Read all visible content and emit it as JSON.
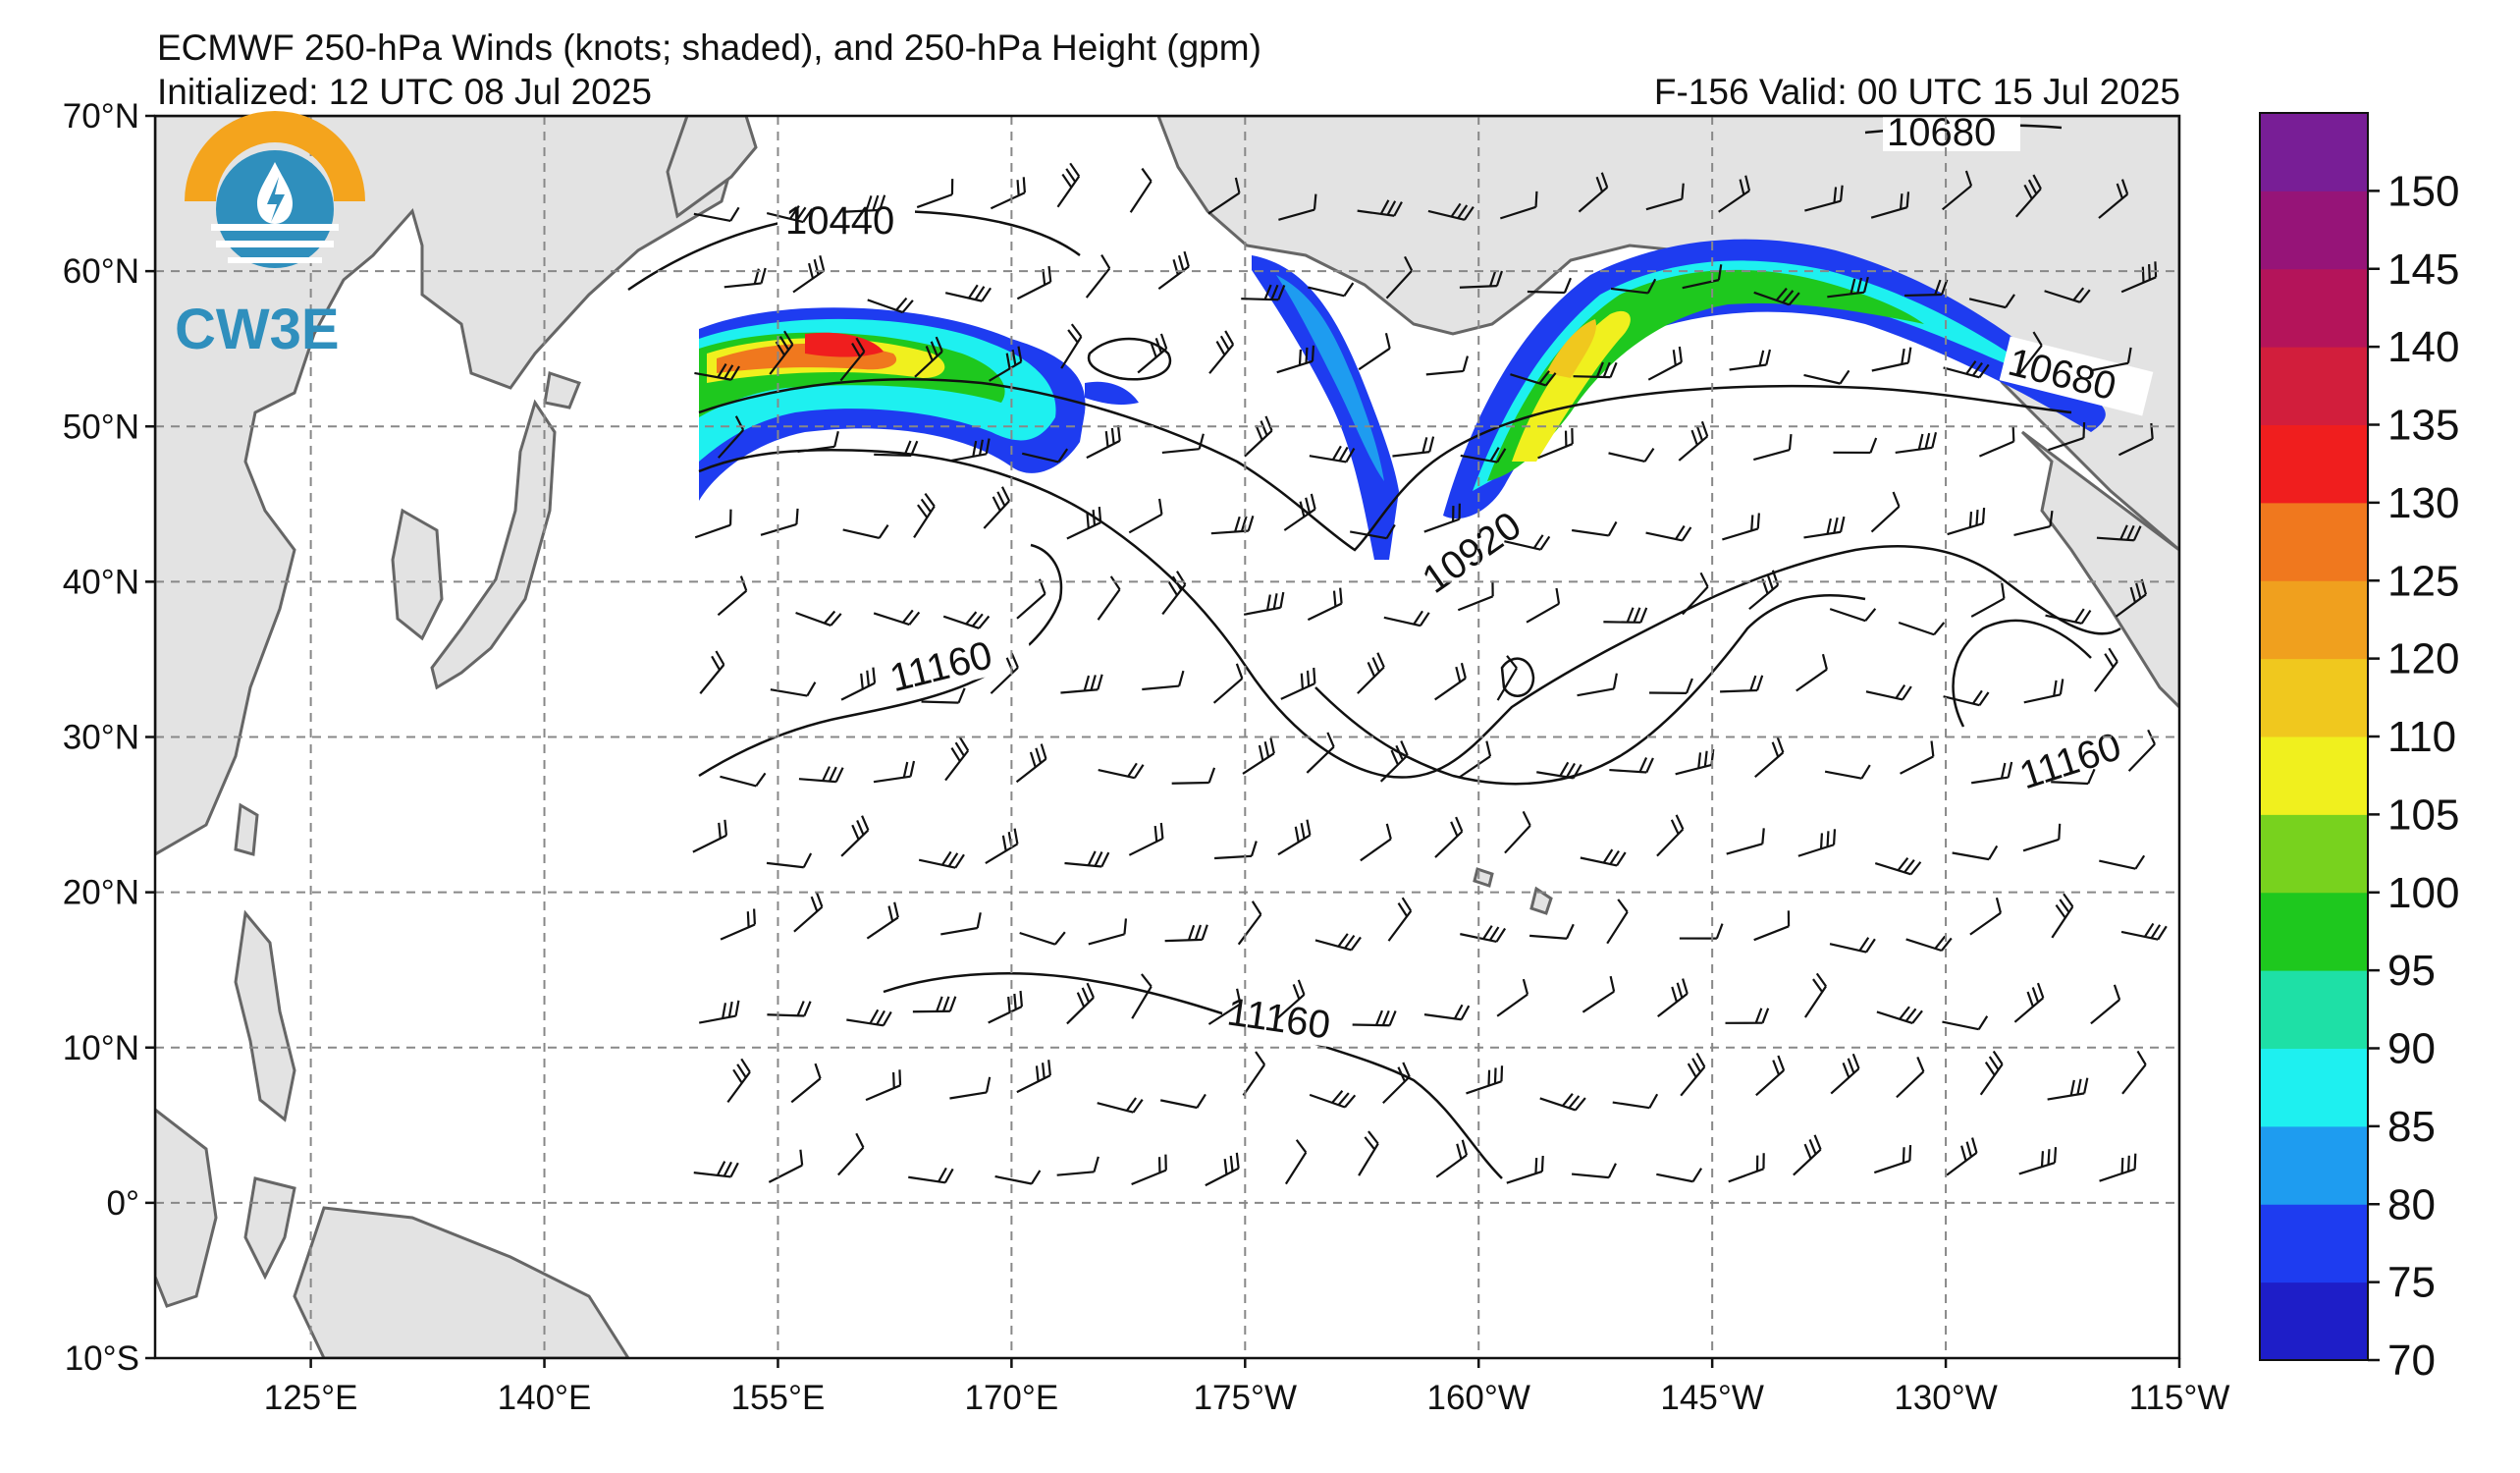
{
  "header": {
    "title": "ECMWF 250-hPa Winds (knots; shaded), and 250-hPa Height (gpm)",
    "initialized": "Initialized: 12 UTC 08 Jul 2025",
    "valid": "F-156  Valid: 00 UTC 15 Jul 2025"
  },
  "logo": {
    "text": "CW3E",
    "color": "#2f8fbd",
    "accent": "#f4a41d"
  },
  "map": {
    "projection": "equirectangular",
    "lon_range": [
      115,
      245
    ],
    "lat_range": [
      -10,
      70
    ],
    "land_color": "#e3e3e3",
    "coast_color": "#666666",
    "grid": "dashed",
    "lat_labels": [
      "70°N",
      "60°N",
      "50°N",
      "40°N",
      "30°N",
      "20°N",
      "10°N",
      "0°",
      "10°S"
    ],
    "lon_labels": [
      "125°E",
      "140°E",
      "155°E",
      "170°E",
      "175°W",
      "160°W",
      "145°W",
      "130°W",
      "115°W"
    ]
  },
  "contour_labels": [
    "10440",
    "10680",
    "10680",
    "10920",
    "11160",
    "11160",
    "11160"
  ],
  "colorbar": {
    "colors": [
      "#1e1ec8",
      "#1e3cf0",
      "#1e9cf0",
      "#1ef0f0",
      "#1ee0a6",
      "#1ec81e",
      "#78d21e",
      "#f0f01e",
      "#f0c81e",
      "#f0a01e",
      "#f0781e",
      "#f01e1e",
      "#d21e3c",
      "#b4145a",
      "#961478",
      "#781e96"
    ],
    "tick_labels": [
      "70",
      "75",
      "80",
      "85",
      "90",
      "95",
      "100",
      "105",
      "110",
      "120",
      "125",
      "130",
      "135",
      "140",
      "145",
      "150"
    ]
  }
}
